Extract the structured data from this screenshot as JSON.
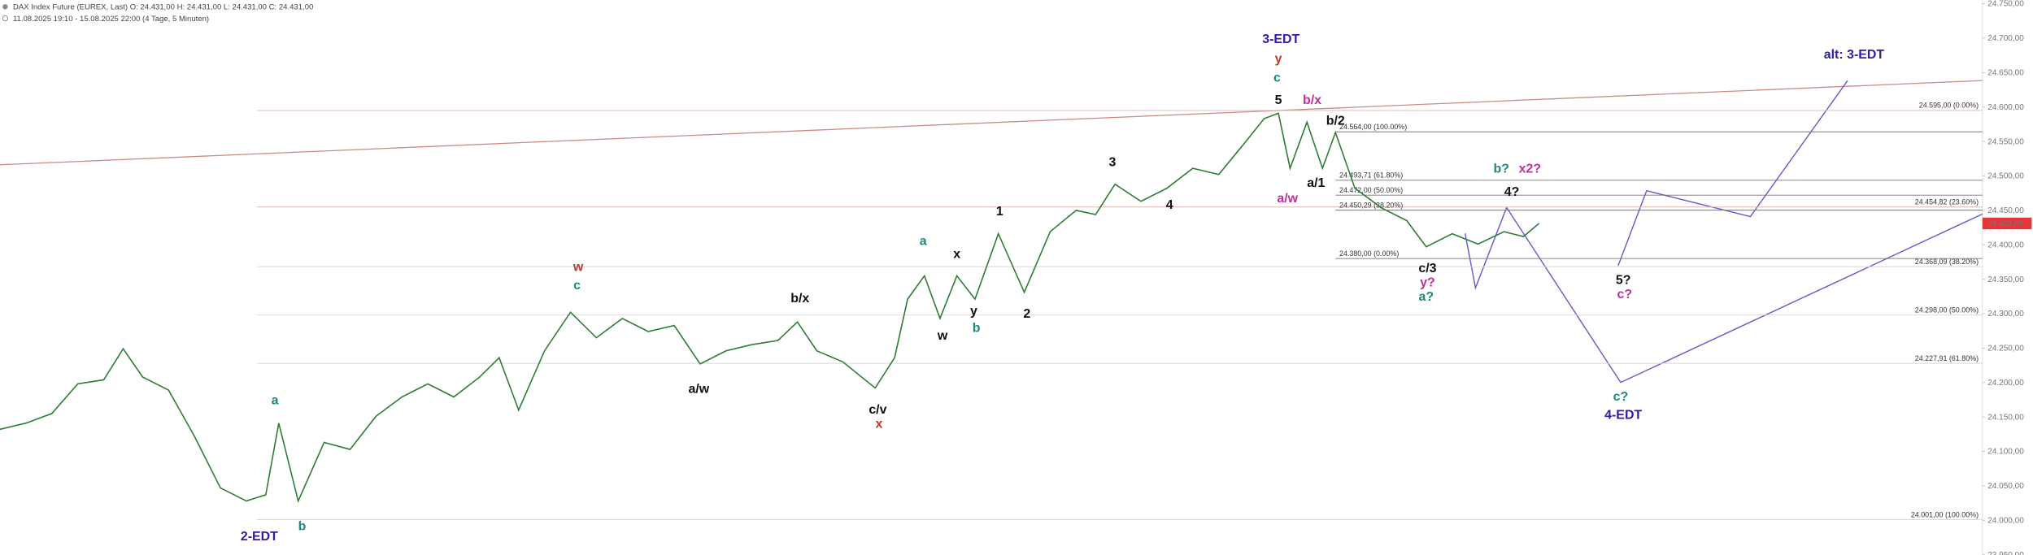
{
  "chart_data": {
    "type": "line",
    "title": "DAX Index Future (EUREX, Last)  O: 24.431,00  H: 24.431,00  L: 24.431,00  C: 24.431,00",
    "subtitle": "11.08.2025 19:10 - 15.08.2025 22:00   (4 Tage, 5 Minuten)",
    "color": "#2e7d32",
    "x": [
      0,
      20,
      40,
      60,
      80,
      95,
      110,
      130,
      150,
      170,
      190,
      205,
      215,
      230,
      250,
      270,
      290,
      310,
      330,
      350,
      370,
      385,
      400,
      420,
      440,
      460,
      480,
      500,
      520,
      540,
      560,
      580,
      600,
      615,
      630,
      650,
      675,
      690,
      700,
      713,
      725,
      738,
      752,
      770,
      790,
      810,
      830,
      845,
      860,
      880,
      900,
      920,
      940,
      960,
      975,
      986,
      995,
      1008,
      1020,
      1030,
      1045,
      1065,
      1085,
      1100,
      1120,
      1140,
      1160,
      1175,
      1187
    ],
    "values": [
      24132,
      24141,
      24155,
      24198,
      24204,
      24249,
      24208,
      24189,
      24122,
      24047,
      24028,
      24037,
      24141,
      24028,
      24113,
      24103,
      24151,
      24179,
      24198,
      24179,
      24208,
      24236,
      24160,
      24246,
      24302,
      24265,
      24293,
      24274,
      24283,
      24227,
      24246,
      24255,
      24261,
      24288,
      24246,
      24230,
      24192,
      24236,
      24321,
      24355,
      24293,
      24355,
      24321,
      24416,
      24331,
      24419,
      24450,
      24444,
      24488,
      24463,
      24482,
      24511,
      24502,
      24548,
      24583,
      24591,
      24511,
      24578,
      24511,
      24563,
      24482,
      24454,
      24435,
      24397,
      24416,
      24401,
      24419,
      24412,
      24431
    ],
    "xlim": [
      0,
      1568
    ],
    "ylim": [
      23950,
      24755
    ],
    "yticks": [
      {
        "value": 23950,
        "label": "23.950,00"
      },
      {
        "value": 24000,
        "label": "24.000,00"
      },
      {
        "value": 24050,
        "label": "24.050,00"
      },
      {
        "value": 24100,
        "label": "24.100,00"
      },
      {
        "value": 24150,
        "label": "24.150,00"
      },
      {
        "value": 24200,
        "label": "24.200,00"
      },
      {
        "value": 24250,
        "label": "24.250,00"
      },
      {
        "value": 24300,
        "label": "24.300,00"
      },
      {
        "value": 24350,
        "label": "24.350,00"
      },
      {
        "value": 24400,
        "label": "24.400,00"
      },
      {
        "value": 24450,
        "label": "24.450,00"
      },
      {
        "value": 24500,
        "label": "24.500,00"
      },
      {
        "value": 24550,
        "label": "24.550,00"
      },
      {
        "value": 24600,
        "label": "24.600,00"
      },
      {
        "value": 24650,
        "label": "24.650,00"
      },
      {
        "value": 24700,
        "label": "24.700,00"
      },
      {
        "value": 24750,
        "label": "24.750,00"
      }
    ],
    "last_price": {
      "value": 24431,
      "label": "24.431,00"
    },
    "retracement_levels": [
      {
        "value": 24595,
        "label": "24.595,00 (0.00%)"
      },
      {
        "value": 24454.82,
        "label": "24.454,82 (23.60%)"
      },
      {
        "value": 24368.09,
        "label": "24.368,09 (38.20%)"
      },
      {
        "value": 24298,
        "label": "24.298,00 (50.00%)"
      },
      {
        "value": 24227.91,
        "label": "24.227,91 (61.80%)"
      },
      {
        "value": 24001,
        "label": "24.001,00 (100.00%)"
      }
    ],
    "fib_levels": [
      {
        "value": 24564,
        "label": "24.564,00 (100.00%)"
      },
      {
        "value": 24493.71,
        "label": "24.493,71 (61.80%)"
      },
      {
        "value": 24472,
        "label": "24.472,00 (50.00%)"
      },
      {
        "value": 24450.29,
        "label": "24.450,29 (38.20%)"
      },
      {
        "value": 24380,
        "label": "24.380,00 (0.00%)"
      }
    ],
    "annotations": [
      {
        "text": "3-EDT",
        "color": "#2b1fa6"
      },
      {
        "text": "y",
        "color": "#c0392b"
      },
      {
        "text": "c",
        "color": "#1a8a7a"
      },
      {
        "text": "5",
        "color": "#111"
      },
      {
        "text": "b/x",
        "color": "#c0309a"
      },
      {
        "text": "b/2",
        "color": "#111"
      },
      {
        "text": "a/1",
        "color": "#111"
      },
      {
        "text": "a/w",
        "color": "#c0309a"
      },
      {
        "text": "b?",
        "color": "#1a8a7a"
      },
      {
        "text": "x2?",
        "color": "#c0309a"
      },
      {
        "text": "4?",
        "color": "#111"
      },
      {
        "text": "c/3",
        "color": "#111"
      },
      {
        "text": "y?",
        "color": "#c0309a"
      },
      {
        "text": "a?",
        "color": "#1a8a7a"
      },
      {
        "text": "5?",
        "color": "#111"
      },
      {
        "text": "c?",
        "color": "#c0309a"
      },
      {
        "text": "c?",
        "color": "#1a8a7a"
      },
      {
        "text": "4-EDT",
        "color": "#2b1fa6"
      },
      {
        "text": "alt: 3-EDT",
        "color": "#2b1fa6"
      },
      {
        "text": "3",
        "color": "#111"
      },
      {
        "text": "4",
        "color": "#111"
      },
      {
        "text": "1",
        "color": "#111"
      },
      {
        "text": "2",
        "color": "#111"
      },
      {
        "text": "x",
        "color": "#111"
      },
      {
        "text": "y",
        "color": "#111"
      },
      {
        "text": "b",
        "color": "#1a8a7a"
      },
      {
        "text": "w",
        "color": "#111"
      },
      {
        "text": "a",
        "color": "#1a8a7a"
      },
      {
        "text": "b/x",
        "color": "#111"
      },
      {
        "text": "a/w",
        "color": "#111"
      },
      {
        "text": "c/v",
        "color": "#111"
      },
      {
        "text": "x",
        "color": "#c0392b"
      },
      {
        "text": "w",
        "color": "#c0392b"
      },
      {
        "text": "c",
        "color": "#1a8a7a"
      },
      {
        "text": "a",
        "color": "#1a8a7a"
      },
      {
        "text": "b",
        "color": "#1a8a7a"
      },
      {
        "text": "2-EDT",
        "color": "#2b1fa6"
      }
    ]
  }
}
